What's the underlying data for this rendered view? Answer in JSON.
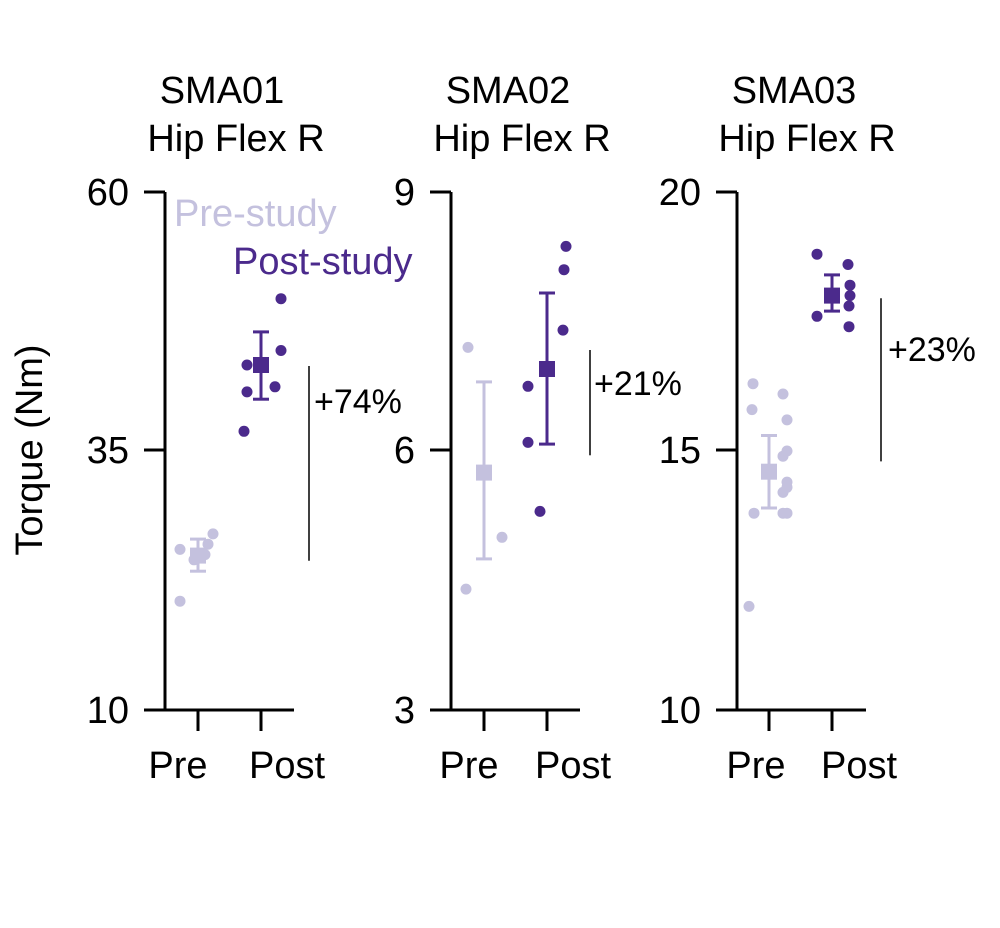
{
  "figure": {
    "ylabel": "Torque (Nm)",
    "legend": {
      "pre": "Pre-study",
      "post": "Post-study",
      "placement": "top-left of first panel"
    }
  },
  "colors": {
    "pre": "#c4c1de",
    "post": "#4b2a8c",
    "axis": "#000000"
  },
  "chart_data": [
    {
      "type": "scatter",
      "title": [
        "SMA01",
        "Hip Flex R"
      ],
      "categories": [
        "Pre",
        "Post"
      ],
      "ylim": [
        10,
        60
      ],
      "yticks": [
        "60",
        "35",
        "10"
      ],
      "annotation": "+74%",
      "series": [
        {
          "name": "Pre",
          "points": [
            25.5,
            24.5,
            20.5,
            25,
            27,
            26
          ],
          "mean": 24.9,
          "error": [
            23.4,
            26.5
          ]
        },
        {
          "name": "Post",
          "points": [
            36.9,
            40.7,
            43.3,
            41.2,
            44.7,
            49.7
          ],
          "mean": 43.3,
          "error": [
            40.0,
            46.5
          ]
        }
      ],
      "change_bar": [
        24.4,
        43.2
      ]
    },
    {
      "type": "scatter",
      "title": [
        "SMA02",
        "Hip Flex R"
      ],
      "categories": [
        "Pre",
        "Post"
      ],
      "ylim": [
        3,
        9
      ],
      "yticks": [
        "9",
        "6",
        "3"
      ],
      "annotation": "+21%",
      "series": [
        {
          "name": "Pre",
          "points": [
            7.2,
            4.4,
            5.0
          ],
          "mean": 5.75,
          "error": [
            4.75,
            6.8
          ]
        },
        {
          "name": "Post",
          "points": [
            6.1,
            6.75,
            5.3,
            7.4,
            8.1,
            8.37
          ],
          "mean": 6.95,
          "error": [
            6.08,
            7.83
          ]
        }
      ],
      "change_bar": [
        5.95,
        7.17
      ]
    },
    {
      "type": "scatter",
      "title": [
        "SMA03",
        "Hip Flex R"
      ],
      "categories": [
        "Pre",
        "Post"
      ],
      "ylim": [
        10,
        20
      ],
      "yticks": [
        "20",
        "15",
        "10"
      ],
      "annotation": "+23%",
      "series": [
        {
          "name": "Pre",
          "points": [
            16.3,
            15.8,
            13.8,
            12.0,
            16.1,
            14.9,
            13.8,
            14.3,
            15.6,
            15.0,
            14.4,
            14.2,
            13.8
          ],
          "mean": 14.6,
          "error": [
            13.9,
            15.3
          ]
        },
        {
          "name": "Post",
          "points": [
            18.8,
            17.6,
            18.6,
            18.0,
            18.2,
            17.8,
            17.4
          ],
          "mean": 18.0,
          "error": [
            17.7,
            18.4
          ]
        }
      ],
      "change_bar": [
        14.8,
        17.95
      ]
    }
  ]
}
